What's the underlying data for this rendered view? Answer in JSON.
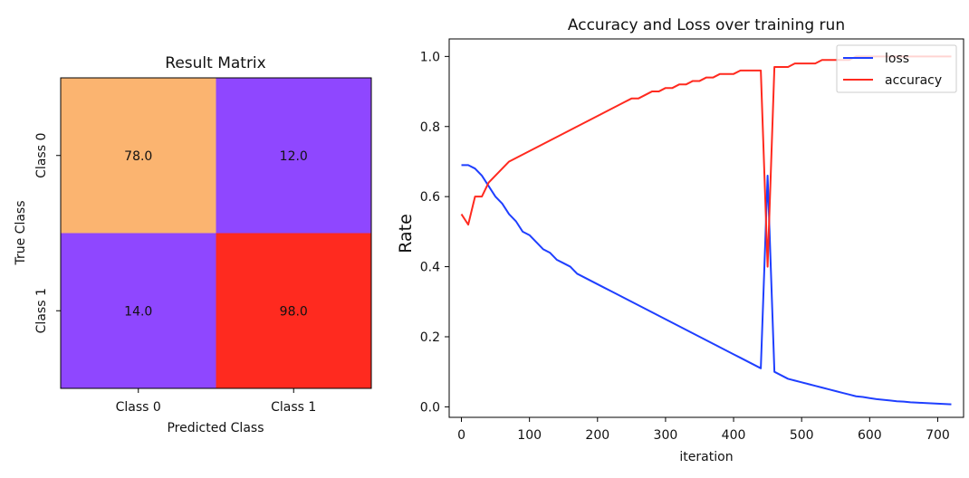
{
  "chart_data": [
    {
      "type": "heatmap",
      "title": "Result Matrix",
      "xlabel": "Predicted Class",
      "ylabel": "True Class",
      "x_categories": [
        "Class 0",
        "Class 1"
      ],
      "y_categories": [
        "Class 0",
        "Class 1"
      ],
      "values": [
        [
          78.0,
          12.0
        ],
        [
          14.0,
          98.0
        ]
      ],
      "value_labels": [
        [
          "78.0",
          "12.0"
        ],
        [
          "14.0",
          "98.0"
        ]
      ],
      "cell_colors": [
        [
          "#fbb470",
          "#8f47ff"
        ],
        [
          "#8f47ff",
          "#ff2a1f"
        ]
      ]
    },
    {
      "type": "line",
      "title": "Accuracy and Loss over training run",
      "xlabel": "iteration",
      "ylabel": "Rate",
      "xlim": [
        -18,
        738
      ],
      "ylim": [
        -0.03,
        1.05
      ],
      "xticks": [
        0,
        100,
        200,
        300,
        400,
        500,
        600,
        700
      ],
      "xtick_labels": [
        "0",
        "100",
        "200",
        "300",
        "400",
        "500",
        "600",
        "700"
      ],
      "yticks": [
        0.0,
        0.2,
        0.4,
        0.6,
        0.8,
        1.0
      ],
      "ytick_labels": [
        "0.0",
        "0.2",
        "0.4",
        "0.6",
        "0.8",
        "1.0"
      ],
      "legend_position": "top-right",
      "grid": false,
      "series": [
        {
          "name": "loss",
          "color": "#1f3fff",
          "x": [
            0,
            10,
            20,
            30,
            40,
            50,
            60,
            70,
            80,
            90,
            100,
            110,
            120,
            130,
            140,
            150,
            160,
            170,
            180,
            190,
            200,
            210,
            220,
            230,
            240,
            250,
            260,
            270,
            280,
            290,
            300,
            310,
            320,
            330,
            340,
            350,
            360,
            370,
            380,
            390,
            400,
            410,
            420,
            430,
            440,
            450,
            460,
            470,
            480,
            490,
            500,
            510,
            520,
            530,
            540,
            550,
            560,
            570,
            580,
            590,
            600,
            610,
            620,
            630,
            640,
            650,
            660,
            670,
            680,
            690,
            700,
            710,
            720
          ],
          "values": [
            0.69,
            0.69,
            0.68,
            0.66,
            0.63,
            0.6,
            0.58,
            0.55,
            0.53,
            0.5,
            0.49,
            0.47,
            0.45,
            0.44,
            0.42,
            0.41,
            0.4,
            0.38,
            0.37,
            0.36,
            0.35,
            0.34,
            0.33,
            0.32,
            0.31,
            0.3,
            0.29,
            0.28,
            0.27,
            0.26,
            0.25,
            0.24,
            0.23,
            0.22,
            0.21,
            0.2,
            0.19,
            0.18,
            0.17,
            0.16,
            0.15,
            0.14,
            0.13,
            0.12,
            0.11,
            0.66,
            0.1,
            0.09,
            0.08,
            0.075,
            0.07,
            0.065,
            0.06,
            0.055,
            0.05,
            0.045,
            0.04,
            0.035,
            0.03,
            0.028,
            0.025,
            0.022,
            0.02,
            0.018,
            0.016,
            0.015,
            0.013,
            0.012,
            0.011,
            0.01,
            0.009,
            0.008,
            0.007
          ]
        },
        {
          "name": "accuracy",
          "color": "#ff2a1f",
          "x": [
            0,
            10,
            20,
            30,
            40,
            50,
            60,
            70,
            80,
            90,
            100,
            110,
            120,
            130,
            140,
            150,
            160,
            170,
            180,
            190,
            200,
            210,
            220,
            230,
            240,
            250,
            260,
            270,
            280,
            290,
            300,
            310,
            320,
            330,
            340,
            350,
            360,
            370,
            380,
            390,
            400,
            410,
            420,
            430,
            440,
            450,
            460,
            470,
            480,
            490,
            500,
            510,
            520,
            530,
            540,
            550,
            560,
            570,
            580,
            590,
            600,
            610,
            620,
            630,
            640,
            650,
            660,
            670,
            680,
            690,
            700,
            710,
            720
          ],
          "values": [
            0.55,
            0.52,
            0.6,
            0.6,
            0.64,
            0.66,
            0.68,
            0.7,
            0.71,
            0.72,
            0.73,
            0.74,
            0.75,
            0.76,
            0.77,
            0.78,
            0.79,
            0.8,
            0.81,
            0.82,
            0.83,
            0.84,
            0.85,
            0.86,
            0.87,
            0.88,
            0.88,
            0.89,
            0.9,
            0.9,
            0.91,
            0.91,
            0.92,
            0.92,
            0.93,
            0.93,
            0.94,
            0.94,
            0.95,
            0.95,
            0.95,
            0.96,
            0.96,
            0.96,
            0.96,
            0.4,
            0.97,
            0.97,
            0.97,
            0.98,
            0.98,
            0.98,
            0.98,
            0.99,
            0.99,
            0.99,
            0.99,
            0.99,
            1.0,
            1.0,
            1.0,
            1.0,
            1.0,
            1.0,
            1.0,
            1.0,
            1.0,
            1.0,
            1.0,
            1.0,
            1.0,
            1.0,
            1.0
          ]
        }
      ]
    }
  ]
}
